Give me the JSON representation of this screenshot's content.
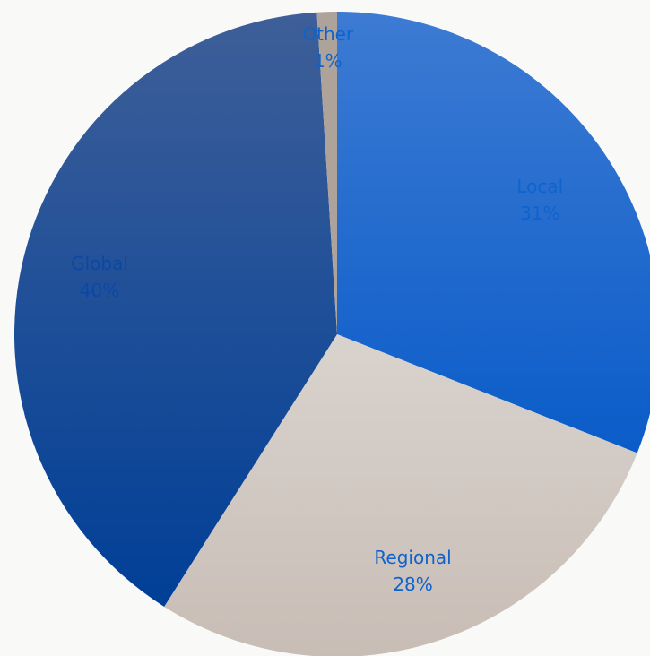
{
  "chart_data": {
    "type": "pie",
    "title": "",
    "start_angle_deg": 0,
    "direction": "clockwise",
    "legend": "none",
    "slices": [
      {
        "name": "Local",
        "percent_label": "31%",
        "value": 31,
        "color_top": "#3d7bd3",
        "color_bottom": "#0a5cc9",
        "label_color": "#0f63cc"
      },
      {
        "name": "Regional",
        "percent_label": "28%",
        "value": 28,
        "color_top": "#d9d3ce",
        "color_bottom": "#c8bdb5",
        "label_color": "#0f63cc"
      },
      {
        "name": "Global",
        "percent_label": "40%",
        "value": 40,
        "color_top": "#3e5f98",
        "color_bottom": "#003f97",
        "label_color": "#0a48a6"
      },
      {
        "name": "Other",
        "percent_label": "1%",
        "value": 1,
        "color_top": "#aea39a",
        "color_bottom": "#aea39a",
        "label_color": "#0f63cc"
      }
    ]
  }
}
